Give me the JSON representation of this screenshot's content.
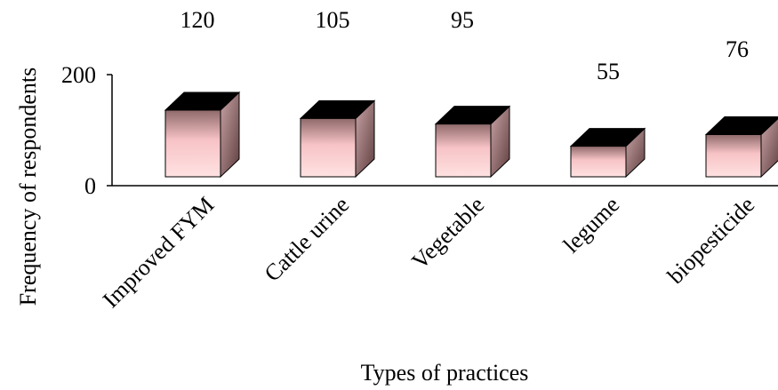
{
  "chart_data": {
    "type": "bar",
    "style": "3d-box",
    "categories": [
      "Improved FYM",
      "Cattle urine",
      "Vegetable",
      "legume",
      "biopesticide"
    ],
    "values": [
      120,
      105,
      95,
      55,
      76
    ],
    "data_labels": [
      "120",
      "105",
      "95",
      "55",
      "76"
    ],
    "ylabel": "Frequency of respondents",
    "xlabel": "Types of practices",
    "ylim": [
      0,
      200
    ],
    "yticks": [
      "0",
      "200"
    ],
    "grid": false,
    "legend": "none",
    "colors": {
      "front_top": "#f7c3c6",
      "front_bottom": "#ffe2e2",
      "front_dark": "#8f6a6b",
      "side_light": "#c9a4a6",
      "side_dark": "#5e3d3f",
      "top": "#000000"
    }
  }
}
